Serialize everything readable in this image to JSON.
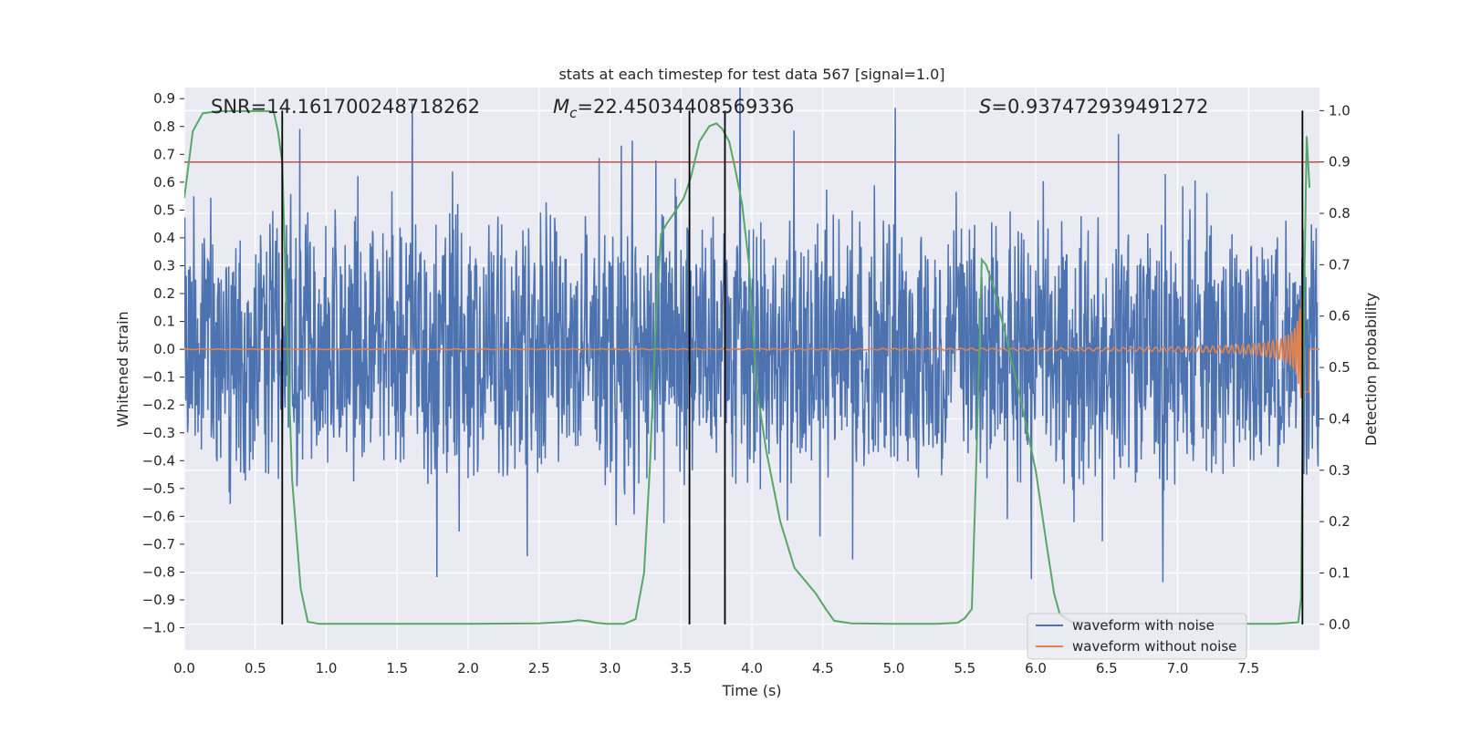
{
  "chart_data": {
    "type": "line",
    "title": "stats at each timestep for test data 567 [signal=1.0]",
    "xlabel": "Time (s)",
    "ylabel": "Whitened strain",
    "ylabel_right": "Detection probability",
    "xlim": [
      0.0,
      8.0
    ],
    "ylim": [
      -1.08,
      0.94
    ],
    "ylim_right": [
      -0.05,
      1.045
    ],
    "x_ticks": [
      "0.0",
      "0.5",
      "1.0",
      "1.5",
      "2.0",
      "2.5",
      "3.0",
      "3.5",
      "4.0",
      "4.5",
      "5.0",
      "5.5",
      "6.0",
      "6.5",
      "7.0",
      "7.5"
    ],
    "y_ticks": [
      "0.9",
      "0.8",
      "0.7",
      "0.6",
      "0.5",
      "0.4",
      "0.3",
      "0.2",
      "0.1",
      "0.0",
      "−0.1",
      "−0.2",
      "−0.3",
      "−0.4",
      "−0.5",
      "−0.6",
      "−0.7",
      "−0.8",
      "−0.9",
      "−1.0"
    ],
    "y_right_ticks": [
      "1.0",
      "0.9",
      "0.8",
      "0.7",
      "0.6",
      "0.5",
      "0.4",
      "0.3",
      "0.2",
      "0.1",
      "0.0"
    ],
    "annotations": {
      "snr": "SNR=14.161700248718262",
      "mc_symbol": "M",
      "mc_sub": "c",
      "mc_value": "=22.45034408569336",
      "s_symbol": "S",
      "s_value": "=0.937472939491272"
    },
    "threshold_right": 0.9,
    "detection_markers_x": [
      0.69,
      3.56,
      3.81,
      7.88
    ],
    "series": [
      {
        "name": "waveform with noise",
        "color": "#4c72b0",
        "description": "whitened noisy strain, amplitude envelope roughly ±0.5 with spikes to about 0.85 and -0.8"
      },
      {
        "name": "waveform without noise",
        "color": "#dd8452",
        "description": "chirp signal growing in amplitude and frequency toward merger near 7.9 s"
      },
      {
        "name": "detection probability",
        "color": "#55a868",
        "axis": "right",
        "x": [
          0.0,
          0.06,
          0.13,
          0.25,
          0.4,
          0.5,
          0.6,
          0.63,
          0.66,
          0.69,
          0.72,
          0.76,
          0.82,
          0.87,
          0.95,
          1.0,
          1.5,
          2.0,
          2.5,
          2.7,
          2.78,
          2.85,
          2.9,
          2.98,
          3.1,
          3.18,
          3.24,
          3.28,
          3.33,
          3.36,
          3.4,
          3.45,
          3.52,
          3.57,
          3.63,
          3.7,
          3.75,
          3.79,
          3.84,
          3.88,
          3.93,
          3.98,
          4.03,
          4.1,
          4.2,
          4.3,
          4.45,
          4.52,
          4.58,
          4.7,
          5.0,
          5.3,
          5.45,
          5.5,
          5.55,
          5.58,
          5.62,
          5.65,
          5.7,
          5.8,
          5.9,
          6.0,
          6.08,
          6.13,
          6.17,
          6.25,
          6.5,
          7.0,
          7.4,
          7.6,
          7.7,
          7.8,
          7.85,
          7.87,
          7.89,
          7.91,
          7.93
        ],
        "values": [
          0.83,
          0.96,
          0.995,
          0.999,
          0.999,
          0.999,
          0.999,
          0.997,
          0.96,
          0.9,
          0.6,
          0.28,
          0.07,
          0.005,
          0.001,
          0.001,
          0.001,
          0.001,
          0.002,
          0.005,
          0.008,
          0.006,
          0.003,
          0.001,
          0.001,
          0.01,
          0.1,
          0.3,
          0.63,
          0.76,
          0.78,
          0.8,
          0.83,
          0.87,
          0.94,
          0.97,
          0.975,
          0.965,
          0.94,
          0.89,
          0.82,
          0.7,
          0.47,
          0.34,
          0.2,
          0.11,
          0.06,
          0.03,
          0.007,
          0.002,
          0.001,
          0.001,
          0.003,
          0.012,
          0.03,
          0.3,
          0.71,
          0.7,
          0.66,
          0.55,
          0.43,
          0.3,
          0.15,
          0.06,
          0.02,
          0.005,
          0.001,
          0.001,
          0.001,
          0.001,
          0.001,
          0.003,
          0.004,
          0.05,
          0.6,
          0.95,
          0.85
        ]
      }
    ],
    "legend": [
      "waveform with noise",
      "waveform without noise"
    ],
    "legend_position": "lower-right",
    "grid": true
  }
}
